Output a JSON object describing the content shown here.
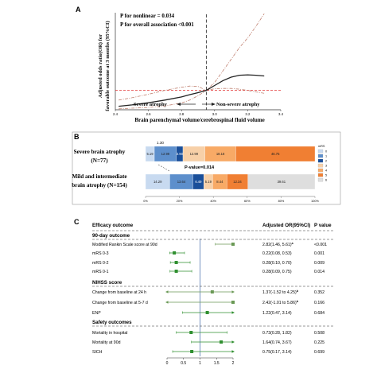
{
  "panel_labels": [
    "A",
    "B",
    "C"
  ],
  "chart_data": [
    {
      "type": "line",
      "panel": "A",
      "annotations": [
        "P for nonlinear = 0.034",
        "P for overall association <0.001"
      ],
      "xlabel": "Brain parenchymal volume/cerebrospinal fluid volume",
      "ylabel_lines": [
        "Adjusted odds ratio(OR) for",
        "favorable outcome at 3 months (95%CI)"
      ],
      "x_ticks": [
        "2.4",
        "2.6",
        "2.8",
        "3.0",
        "3.2",
        "3.4"
      ],
      "xlim": [
        2.4,
        3.4
      ],
      "ylim": [
        0,
        5
      ],
      "log_scale": false,
      "reference_y": 1,
      "cutoff_x": 2.95,
      "region_labels": [
        "Severe atrophy",
        "Non-severe atrophy"
      ],
      "colors": {
        "estimate": "#222222",
        "ci": "#c08070",
        "reference": "#e03030",
        "cutoff": "#333333"
      },
      "series": [
        {
          "role": "estimate",
          "x": [
            2.42,
            2.5,
            2.6,
            2.7,
            2.8,
            2.85,
            2.9,
            2.95,
            3.0,
            3.05,
            3.1,
            3.15,
            3.2,
            3.25,
            3.3
          ],
          "y": [
            0.18,
            0.25,
            0.36,
            0.5,
            0.66,
            0.78,
            0.88,
            1.0,
            1.25,
            1.5,
            1.68,
            1.78,
            1.8,
            1.78,
            1.74
          ]
        },
        {
          "role": "ci_upper",
          "x": [
            2.42,
            2.5,
            2.6,
            2.7,
            2.8,
            2.85,
            2.9,
            2.95,
            3.0,
            3.05,
            3.1,
            3.15,
            3.2,
            3.25,
            3.3
          ],
          "y": [
            0.5,
            0.62,
            0.8,
            1.0,
            1.16,
            1.22,
            1.2,
            1.0,
            1.4,
            2.0,
            2.6,
            3.2,
            3.7,
            4.3,
            4.95
          ]
        },
        {
          "role": "ci_lower",
          "x": [
            2.42,
            2.5,
            2.6,
            2.7,
            2.8,
            2.85,
            2.9,
            2.95,
            3.0,
            3.05,
            3.1,
            3.15,
            3.2,
            3.25,
            3.3
          ],
          "y": [
            0.05,
            0.08,
            0.12,
            0.2,
            0.35,
            0.5,
            0.72,
            1.0,
            1.08,
            1.1,
            1.1,
            1.06,
            1.0,
            0.92,
            0.85
          ]
        }
      ]
    },
    {
      "type": "bar",
      "panel": "B",
      "orientation": "horizontal",
      "stacked": true,
      "categories": [
        "Severe brain atrophy\n(N=77)",
        "Mild and intermediate\nbrain atrophy (N=154)"
      ],
      "x_ticks": [
        "0%",
        "20%",
        "40%",
        "60%",
        "80%",
        "100%"
      ],
      "xlim": [
        0,
        100
      ],
      "legend_title": "mRS",
      "legend": [
        "0",
        "1",
        "2",
        "3",
        "4",
        "5",
        "6"
      ],
      "colors": [
        "#c8daf0",
        "#5d8fcc",
        "#1a4f9a",
        "#f7d0a8",
        "#f8aa66",
        "#f07f33",
        "#dedede"
      ],
      "series": [
        {
          "name": "0",
          "values": [
            5.19,
            14.29
          ],
          "labels": [
            "5.19",
            "14.29"
          ]
        },
        {
          "name": "1",
          "values": [
            12.99,
            13.64
          ],
          "labels": [
            "12.99",
            "13.64"
          ]
        },
        {
          "name": "2",
          "values": [
            3.9,
            6.49
          ],
          "labels": [
            "3.90",
            "6.49"
          ]
        },
        {
          "name": "3",
          "values": [
            12.99,
            5.19
          ],
          "labels": [
            "12.99",
            "5.19"
          ]
        },
        {
          "name": "4",
          "values": [
            18.18,
            8.44
          ],
          "labels": [
            "18.18",
            "8.44"
          ]
        },
        {
          "name": "5",
          "values": [
            46.75,
            12.34
          ],
          "labels": [
            "46.75",
            "12.34"
          ]
        },
        {
          "name": "6",
          "values": [
            0,
            39.61
          ],
          "labels": [
            "",
            "39.61"
          ]
        }
      ],
      "annotations": [
        "1.30",
        "P-value=0.014"
      ]
    },
    {
      "type": "scatter",
      "panel": "C",
      "kind": "forest",
      "header": {
        "outcome": "Efficacy outcome",
        "effect": "Adjusted OR(95%CI)",
        "p": "P value"
      },
      "xlim": [
        0,
        2
      ],
      "x_ticks": [
        "0",
        "0.5",
        "1",
        "1.5",
        "2"
      ],
      "reference_x": 1,
      "rows": [
        {
          "kind": "section",
          "label": "90-day outcome"
        },
        {
          "kind": "item",
          "label": "Modified Rankin Scale score at 90d",
          "estimate": 2.82,
          "lo": 1.46,
          "hi": 5.61,
          "text": "2.82(1.46, 5.61)",
          "sup": "a",
          "p": "<0.001",
          "color": "#6a9955"
        },
        {
          "kind": "item",
          "label": "mRS 0-3",
          "estimate": 0.22,
          "lo": 0.08,
          "hi": 0.53,
          "text": "0.22(0.08, 0.53)",
          "p": "0.001",
          "color": "#2f8f2f"
        },
        {
          "kind": "item",
          "label": "mRS 0-2",
          "estimate": 0.28,
          "lo": 0.1,
          "hi": 0.7,
          "text": "0.28(0.10, 0.70)",
          "p": "0.009",
          "color": "#2f8f2f"
        },
        {
          "kind": "item",
          "label": "mRS 0-1",
          "estimate": 0.28,
          "lo": 0.09,
          "hi": 0.75,
          "text": "0.28(0.09, 0.75)",
          "p": "0.014",
          "color": "#2f8f2f"
        },
        {
          "kind": "section",
          "label": "NIHSS score"
        },
        {
          "kind": "item",
          "label": "Change from baseline at 24 h",
          "estimate": 1.37,
          "lo": -1.52,
          "hi": 4.25,
          "text": "1.37(-1.52 to 4.25)",
          "sup": "b",
          "p": "0.352",
          "color": "#6a9955"
        },
        {
          "kind": "item",
          "label": "Change from baseline at 5-7 d",
          "estimate": 2.42,
          "lo": -1.01,
          "hi": 5.86,
          "text": "2.42(-1.01 to 5.86)",
          "sup": "b",
          "p": "0.166",
          "color": "#6a9955"
        },
        {
          "kind": "item",
          "label": "ENI",
          "label_sup": "c",
          "estimate": 1.22,
          "lo": 0.47,
          "hi": 3.14,
          "text": "1.22(0.47, 3.14)",
          "p": "0.684",
          "color": "#2f8f2f"
        },
        {
          "kind": "section",
          "label": "Safety outcomes"
        },
        {
          "kind": "item",
          "label": "Mortality in hospital",
          "estimate": 0.73,
          "lo": 0.28,
          "hi": 1.82,
          "text": "0.73(0.28, 1.82)",
          "p": "0.508",
          "color": "#2f8f2f"
        },
        {
          "kind": "item",
          "label": "Mortality at 90d",
          "estimate": 1.64,
          "lo": 0.74,
          "hi": 3.67,
          "text": "1.64(0.74, 3.67)",
          "p": "0.225",
          "color": "#2f8f2f"
        },
        {
          "kind": "item",
          "label": "SICH",
          "estimate": 0.75,
          "lo": 0.17,
          "hi": 3.14,
          "text": "0.75(0.17, 3.14)",
          "p": "0.699",
          "color": "#2f8f2f"
        }
      ]
    }
  ]
}
